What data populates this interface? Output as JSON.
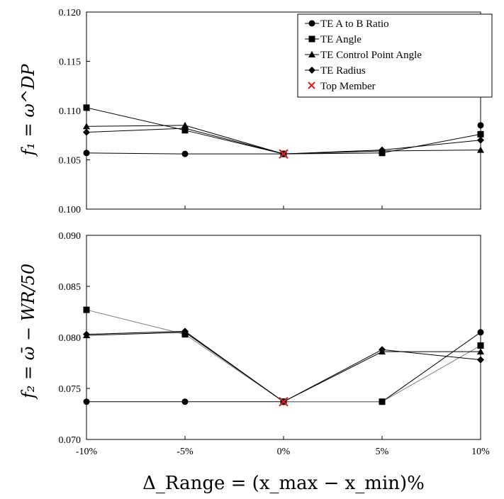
{
  "chart_data": [
    {
      "type": "line",
      "ylabel": "f₁ = ω^DP",
      "categories": [
        "-10%",
        "-5%",
        "0%",
        "5%",
        "10%"
      ],
      "ylim": [
        0.1,
        0.12
      ],
      "yticks": [
        "0.100",
        "0.105",
        "0.110",
        "0.115",
        "0.120"
      ],
      "grid": false,
      "legend_position": "top-right",
      "series": [
        {
          "name": "TE A to B Ratio",
          "marker": "circle",
          "values": [
            0.1057,
            0.1056,
            0.1056,
            null,
            null
          ]
        },
        {
          "name": "TE Angle",
          "marker": "square",
          "values": [
            0.1103,
            0.108,
            0.1056,
            0.1057,
            0.1076
          ]
        },
        {
          "name": "TE Control Point Angle",
          "marker": "triangle",
          "values": [
            0.1084,
            0.1085,
            0.1056,
            0.1059,
            0.106
          ]
        },
        {
          "name": "TE Radius",
          "marker": "diamond",
          "values": [
            0.1078,
            0.1082,
            0.1056,
            0.106,
            0.107
          ]
        },
        {
          "name": "Top Member",
          "marker": "x",
          "color": "#e02020",
          "values": [
            null,
            null,
            0.1056,
            null,
            null
          ]
        }
      ],
      "extra_points": [
        {
          "series": "TE A to B Ratio",
          "x": "10%",
          "y": 0.1085
        }
      ]
    },
    {
      "type": "line",
      "ylabel": "f₂ = ω̄ − WR/50",
      "xlabel": "Δ_Range = (x_max − x_min)%",
      "categories": [
        "-10%",
        "-5%",
        "0%",
        "5%",
        "10%"
      ],
      "ylim": [
        0.07,
        0.09
      ],
      "yticks": [
        "0.070",
        "0.075",
        "0.080",
        "0.085",
        "0.090"
      ],
      "grid": false,
      "series": [
        {
          "name": "TE A to B Ratio",
          "marker": "circle",
          "values": [
            0.0737,
            0.0737,
            0.0737,
            0.0737,
            0.0805
          ]
        },
        {
          "name": "TE Angle",
          "marker": "square",
          "values": [
            0.0827,
            0.0803,
            0.0737,
            0.0737,
            0.0792
          ]
        },
        {
          "name": "TE Control Point Angle",
          "marker": "triangle",
          "values": [
            0.0802,
            0.0805,
            0.0737,
            0.0786,
            0.0786
          ]
        },
        {
          "name": "TE Radius",
          "marker": "diamond",
          "values": [
            0.0803,
            0.0806,
            0.0737,
            0.0788,
            0.0778
          ]
        },
        {
          "name": "Top Member",
          "marker": "x",
          "color": "#e02020",
          "values": [
            null,
            null,
            0.0737,
            null,
            null
          ]
        }
      ]
    }
  ],
  "legend": {
    "items": [
      {
        "label": "TE A to B Ratio",
        "marker": "circle"
      },
      {
        "label": "TE Angle",
        "marker": "square"
      },
      {
        "label": "TE Control Point Angle",
        "marker": "triangle"
      },
      {
        "label": "TE Radius",
        "marker": "diamond"
      },
      {
        "label": "Top Member",
        "marker": "x"
      }
    ]
  },
  "colors": {
    "series": "#000000",
    "top_member": "#e02020",
    "secondary_line": "#808080"
  }
}
